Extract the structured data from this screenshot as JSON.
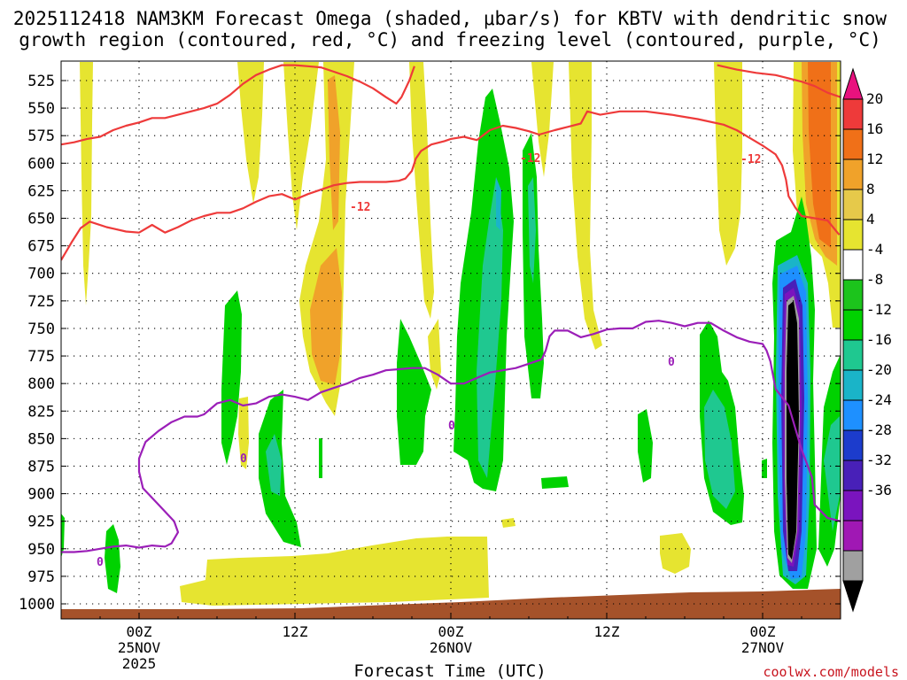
{
  "chart_data": {
    "type": "heatmap",
    "title_line1": "2025112418 NAM3KM Forecast Omega (shaded, μbar/s) for KBTV with dendritic snow",
    "title_line2": "growth region (contoured, red, °C) and freezing level (contoured, purple, °C)",
    "xlabel": "Forecast Time (UTC)",
    "ylabel": "",
    "credit": "coolwx.com/models",
    "y_ticks": [
      525,
      550,
      575,
      600,
      625,
      650,
      675,
      700,
      725,
      750,
      775,
      800,
      825,
      850,
      875,
      900,
      925,
      950,
      975,
      1000
    ],
    "y_tick_labels": [
      "525",
      "550",
      "575",
      "600",
      "625",
      "650",
      "675",
      "700",
      "725",
      "750",
      "775",
      "800",
      "825",
      "850",
      "875",
      "900",
      "925",
      "950",
      "975",
      "1000"
    ],
    "x_ticks": [
      {
        "hour": 6,
        "label": "00Z",
        "sub1": "25NOV",
        "sub2": "2025"
      },
      {
        "hour": 18,
        "label": "12Z",
        "sub1": "",
        "sub2": ""
      },
      {
        "hour": 30,
        "label": "00Z",
        "sub1": "26NOV",
        "sub2": ""
      },
      {
        "hour": 42,
        "label": "12Z",
        "sub1": "",
        "sub2": ""
      },
      {
        "hour": 54,
        "label": "00Z",
        "sub1": "27NOV",
        "sub2": ""
      }
    ],
    "xlim_hours": [
      0,
      60
    ],
    "ylim_hpa": [
      1015,
      510
    ],
    "colorbar": {
      "labels": [
        "20",
        "16",
        "12",
        "8",
        "4",
        "-4",
        "-8",
        "-12",
        "-16",
        "-20",
        "-24",
        "-28",
        "-32",
        "-36"
      ],
      "colors": [
        "#e8127e",
        "#ee3a3a",
        "#f07018",
        "#f0a22a",
        "#e6c94a",
        "#e6e430",
        "#ffffff",
        "#1cc41c",
        "#00d200",
        "#1fc890",
        "#1ab4c8",
        "#1e90ff",
        "#1c3ccc",
        "#4820b8",
        "#7a14be",
        "#a018b4",
        "#a0a0a0",
        "#000000"
      ]
    },
    "contours": [
      {
        "name": "dendritic -12C lower",
        "color": "#ee3a3a",
        "label": "-12",
        "points": [
          [
            0,
            688
          ],
          [
            0.8,
            672
          ],
          [
            1.5,
            659
          ],
          [
            2.2,
            653
          ],
          [
            3.5,
            658
          ],
          [
            5,
            662
          ],
          [
            6,
            663
          ],
          [
            7,
            656
          ],
          [
            8,
            663
          ],
          [
            9,
            658
          ],
          [
            10,
            652
          ],
          [
            11,
            648
          ],
          [
            12,
            645
          ],
          [
            13,
            645
          ],
          [
            14,
            641
          ],
          [
            15,
            635
          ],
          [
            16,
            630
          ],
          [
            17,
            628
          ],
          [
            18,
            633
          ],
          [
            19,
            628
          ],
          [
            20,
            624
          ],
          [
            21,
            620
          ],
          [
            22,
            618
          ],
          [
            23,
            617
          ],
          [
            24,
            617
          ],
          [
            25,
            617
          ],
          [
            26,
            616
          ],
          [
            26.5,
            614
          ],
          [
            27,
            607
          ],
          [
            27.3,
            596
          ],
          [
            27.7,
            589
          ],
          [
            28.5,
            583
          ],
          [
            29.5,
            580
          ],
          [
            30,
            578
          ],
          [
            31,
            576
          ],
          [
            32,
            579
          ],
          [
            33,
            570
          ],
          [
            34,
            566
          ],
          [
            35,
            568
          ],
          [
            36,
            571
          ],
          [
            36.8,
            574
          ],
          [
            38,
            570
          ],
          [
            39,
            567
          ],
          [
            40,
            564
          ],
          [
            40.5,
            553
          ],
          [
            41.5,
            556
          ],
          [
            43,
            553
          ],
          [
            45,
            553
          ],
          [
            47,
            556
          ],
          [
            49,
            560
          ],
          [
            51,
            565
          ],
          [
            52,
            570
          ],
          [
            53,
            577
          ],
          [
            54,
            584
          ],
          [
            55,
            592
          ],
          [
            55.5,
            602
          ],
          [
            55.8,
            615
          ],
          [
            56,
            630
          ],
          [
            56.5,
            640
          ],
          [
            57,
            648
          ],
          [
            58,
            650
          ],
          [
            59,
            652
          ],
          [
            59.9,
            665
          ]
        ]
      },
      {
        "name": "dendritic -12C upper",
        "color": "#ee3a3a",
        "points": [
          [
            0,
            583
          ],
          [
            1,
            581
          ],
          [
            2,
            578
          ],
          [
            3,
            576
          ],
          [
            4,
            570
          ],
          [
            5,
            566
          ],
          [
            6,
            563
          ],
          [
            7,
            559
          ],
          [
            8,
            559
          ],
          [
            9,
            556
          ],
          [
            10,
            553
          ],
          [
            11,
            550
          ],
          [
            12,
            546
          ],
          [
            13,
            538
          ],
          [
            14,
            528
          ],
          [
            15,
            520
          ],
          [
            16,
            515
          ],
          [
            17,
            511
          ],
          [
            18,
            511
          ],
          [
            19,
            512
          ],
          [
            20,
            513
          ],
          [
            21,
            517
          ],
          [
            22,
            521
          ],
          [
            23,
            526
          ],
          [
            24,
            532
          ],
          [
            25,
            540
          ],
          [
            25.8,
            546
          ],
          [
            26.2,
            540
          ],
          [
            26.8,
            525
          ],
          [
            27.2,
            512
          ]
        ]
      },
      {
        "name": "upper red right",
        "color": "#ee3a3a",
        "points": [
          [
            50.5,
            511
          ],
          [
            52,
            515
          ],
          [
            53.5,
            518
          ],
          [
            55,
            520
          ],
          [
            56,
            523
          ],
          [
            57,
            526
          ],
          [
            58,
            530
          ],
          [
            59,
            536
          ],
          [
            60,
            540
          ]
        ]
      },
      {
        "name": "freezing level 0C",
        "color": "#9b1fb8",
        "label": "0",
        "points": [
          [
            0,
            953
          ],
          [
            1,
            953
          ],
          [
            2,
            952
          ],
          [
            3,
            950
          ],
          [
            4,
            948
          ],
          [
            5,
            947
          ],
          [
            6,
            949
          ],
          [
            7,
            947
          ],
          [
            8,
            948
          ],
          [
            8.5,
            945
          ],
          [
            9,
            935
          ],
          [
            8.7,
            925
          ],
          [
            7.5,
            910
          ],
          [
            6.3,
            895
          ],
          [
            6,
            880
          ],
          [
            6,
            868
          ],
          [
            6.5,
            853
          ],
          [
            7.5,
            843
          ],
          [
            8.5,
            835
          ],
          [
            9.5,
            830
          ],
          [
            10.5,
            830
          ],
          [
            11,
            828
          ],
          [
            12,
            818
          ],
          [
            13,
            815
          ],
          [
            14,
            820
          ],
          [
            15,
            818
          ],
          [
            16,
            812
          ],
          [
            17,
            810
          ],
          [
            18,
            812
          ],
          [
            19,
            815
          ],
          [
            20,
            808
          ],
          [
            21,
            804
          ],
          [
            22,
            800
          ],
          [
            23,
            795
          ],
          [
            24,
            792
          ],
          [
            25,
            788
          ],
          [
            26,
            787
          ],
          [
            27,
            786
          ],
          [
            28,
            786
          ],
          [
            29,
            792
          ],
          [
            30,
            800
          ],
          [
            31,
            800
          ],
          [
            32,
            795
          ],
          [
            33,
            790
          ],
          [
            34,
            788
          ],
          [
            35,
            786
          ],
          [
            36,
            782
          ],
          [
            37,
            778
          ],
          [
            37.3,
            770
          ],
          [
            37.6,
            757
          ],
          [
            38,
            752
          ],
          [
            39,
            752
          ],
          [
            40,
            758
          ],
          [
            41,
            755
          ],
          [
            42,
            751
          ],
          [
            43,
            750
          ],
          [
            44,
            750
          ],
          [
            45,
            744
          ],
          [
            46,
            743
          ],
          [
            47,
            745
          ],
          [
            48,
            748
          ],
          [
            49,
            745
          ],
          [
            50,
            745
          ],
          [
            51,
            752
          ],
          [
            52,
            758
          ],
          [
            53,
            762
          ],
          [
            54,
            764
          ],
          [
            54.3,
            770
          ],
          [
            54.6,
            780
          ],
          [
            55,
            805
          ],
          [
            56,
            820
          ],
          [
            57,
            860
          ],
          [
            57.8,
            885
          ],
          [
            58,
            910
          ],
          [
            59,
            922
          ],
          [
            60,
            925
          ]
        ]
      }
    ]
  }
}
